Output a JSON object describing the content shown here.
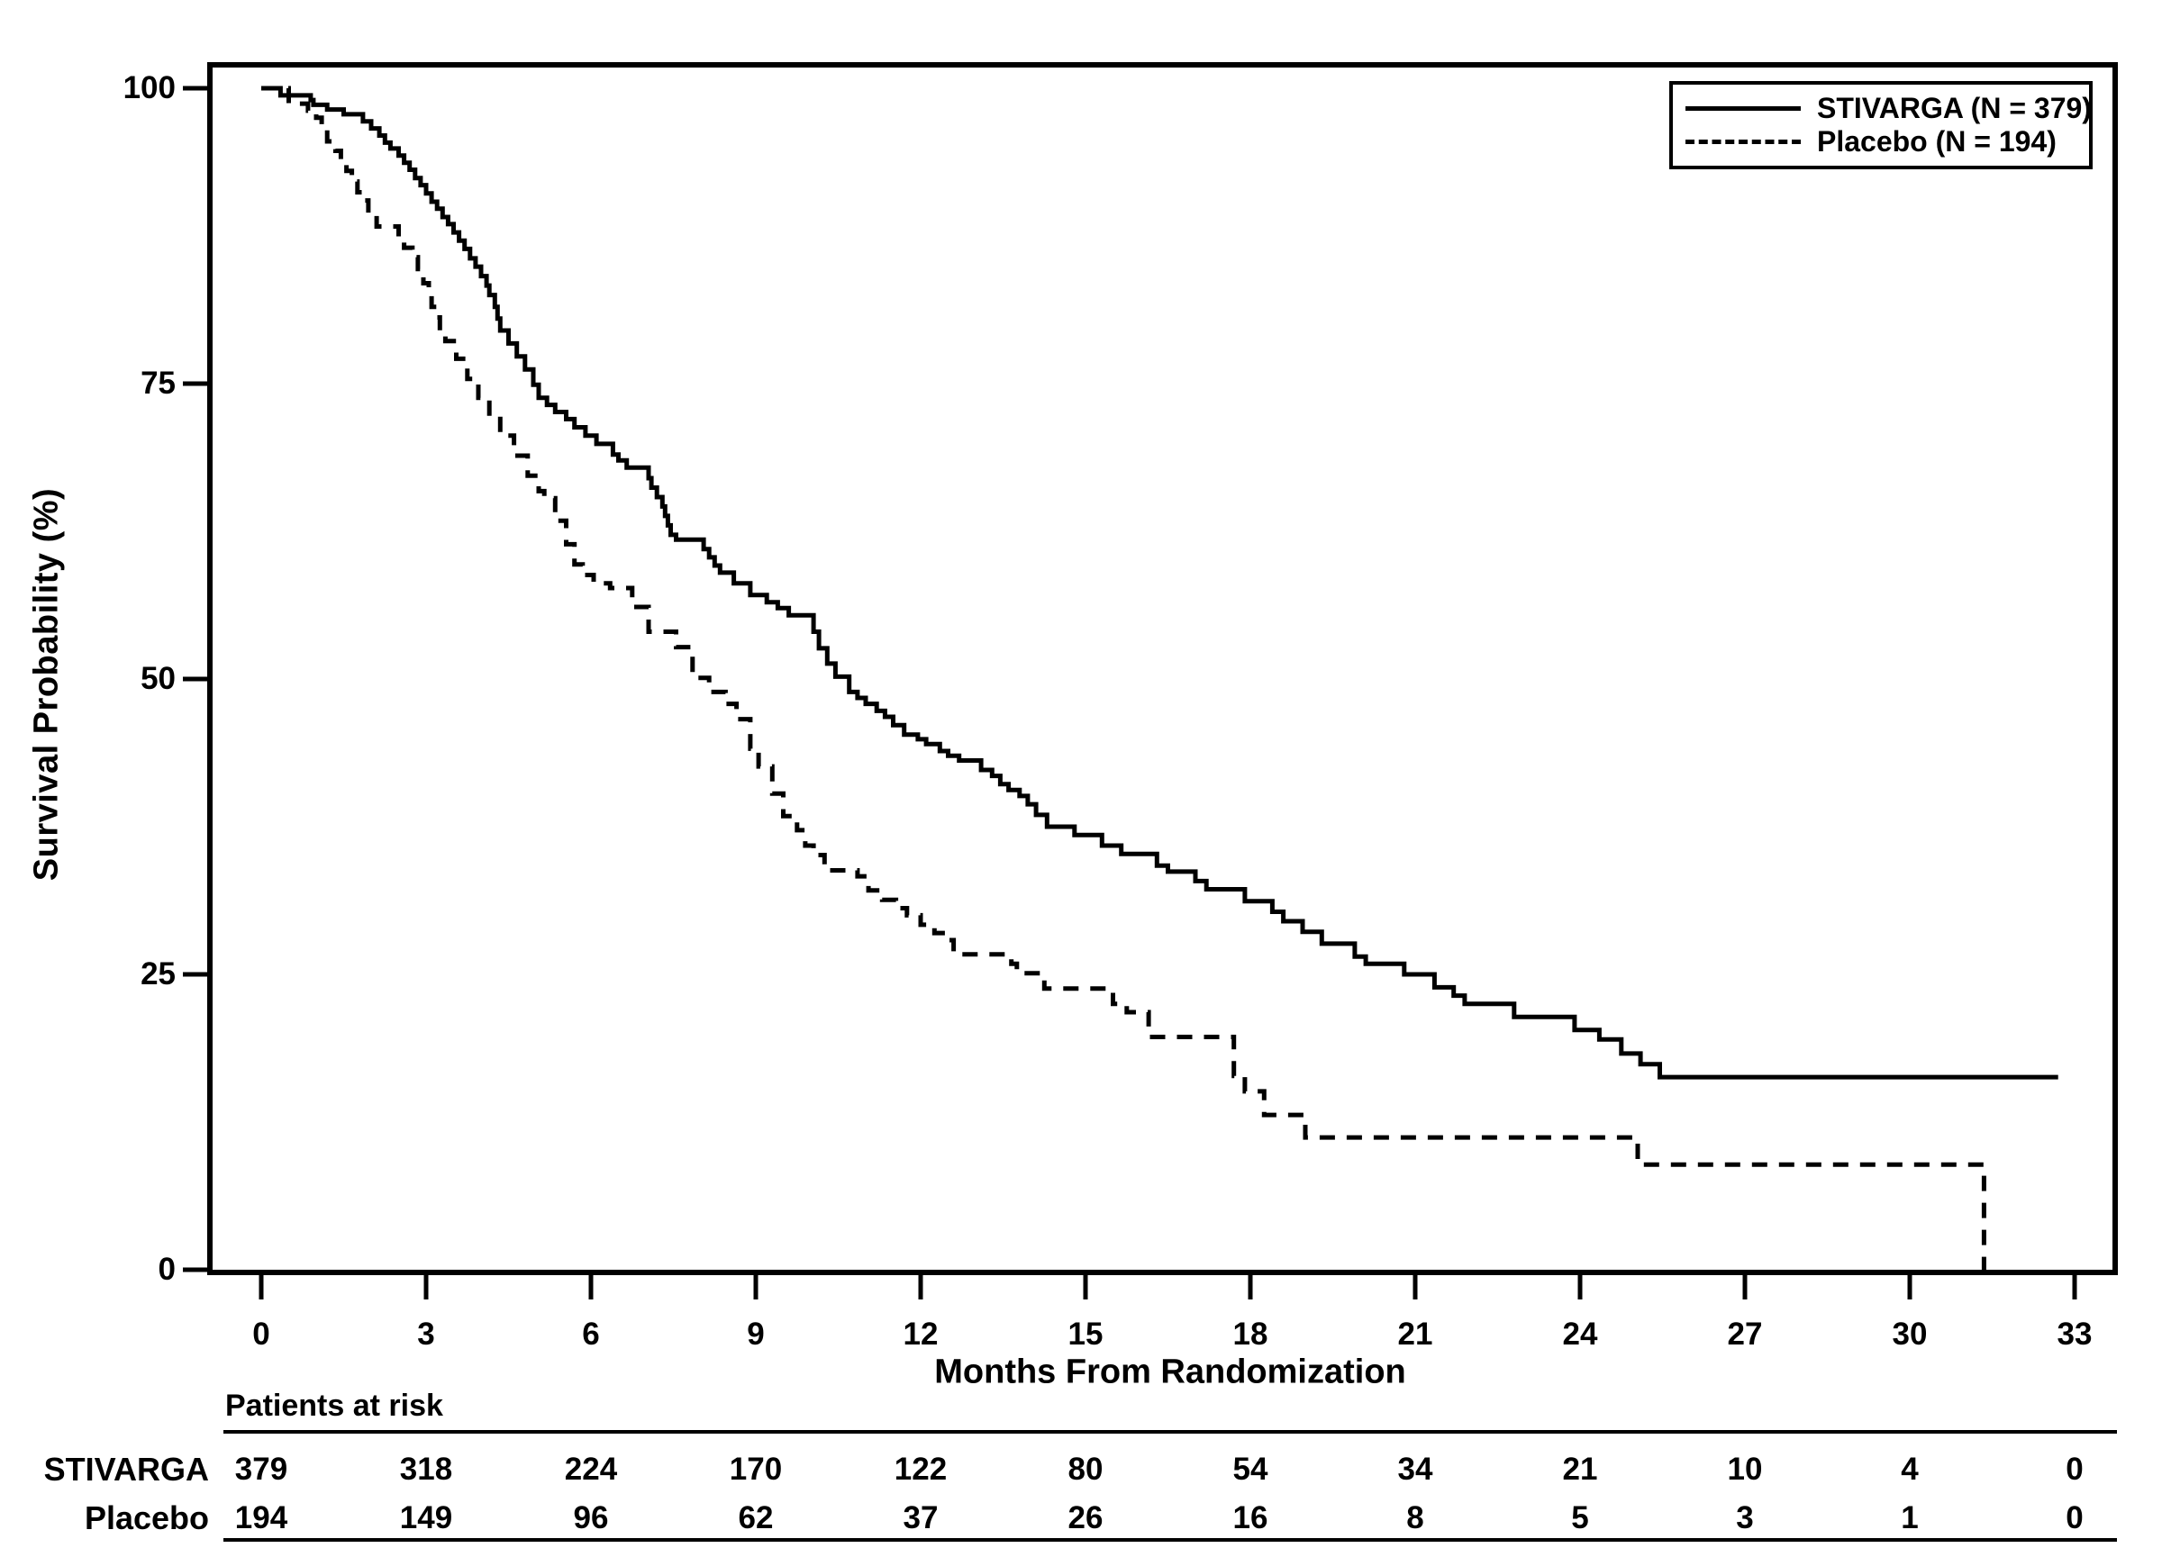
{
  "chart_data": {
    "type": "line",
    "subtype": "kaplan-meier-step",
    "xlabel": "Months From Randomization",
    "ylabel": "Survival Probability (%)",
    "xlim": [
      0,
      33
    ],
    "ylim": [
      0,
      100
    ],
    "xticks": [
      0,
      3,
      6,
      9,
      12,
      15,
      18,
      21,
      24,
      27,
      30,
      33
    ],
    "yticks": [
      0,
      25,
      50,
      75,
      100
    ],
    "grid": false,
    "line_color": "#000000",
    "background": "#ffffff",
    "legend": {
      "position": "top-right",
      "entries": [
        {
          "label": "STIVARGA (N = 379)",
          "style": "solid"
        },
        {
          "label": "Placebo (N = 194)",
          "style": "dashed"
        }
      ]
    },
    "series": [
      {
        "name": "STIVARGA",
        "n": 379,
        "style": "solid",
        "points": [
          [
            0,
            100
          ],
          [
            0.35,
            99.4
          ],
          [
            0.9,
            99.0
          ],
          [
            0.95,
            98.6
          ],
          [
            1.2,
            98.2
          ],
          [
            1.5,
            97.8
          ],
          [
            1.85,
            97.2
          ],
          [
            2.0,
            96.6
          ],
          [
            2.15,
            96.0
          ],
          [
            2.25,
            95.4
          ],
          [
            2.35,
            94.9
          ],
          [
            2.5,
            94.3
          ],
          [
            2.6,
            93.7
          ],
          [
            2.7,
            93.1
          ],
          [
            2.8,
            92.4
          ],
          [
            2.9,
            91.8
          ],
          [
            3.0,
            91.1
          ],
          [
            3.1,
            90.4
          ],
          [
            3.2,
            89.8
          ],
          [
            3.3,
            89.1
          ],
          [
            3.4,
            88.5
          ],
          [
            3.5,
            87.8
          ],
          [
            3.6,
            87.1
          ],
          [
            3.7,
            86.4
          ],
          [
            3.8,
            85.6
          ],
          [
            3.9,
            84.9
          ],
          [
            4.0,
            84.1
          ],
          [
            4.1,
            83.3
          ],
          [
            4.15,
            82.5
          ],
          [
            4.25,
            81.5
          ],
          [
            4.3,
            80.5
          ],
          [
            4.35,
            79.5
          ],
          [
            4.5,
            78.4
          ],
          [
            4.65,
            77.3
          ],
          [
            4.8,
            76.2
          ],
          [
            4.95,
            74.9
          ],
          [
            5.05,
            73.8
          ],
          [
            5.2,
            73.2
          ],
          [
            5.35,
            72.6
          ],
          [
            5.55,
            72.0
          ],
          [
            5.7,
            71.3
          ],
          [
            5.9,
            70.6
          ],
          [
            6.1,
            69.9
          ],
          [
            6.4,
            69.0
          ],
          [
            6.5,
            68.5
          ],
          [
            6.65,
            67.9
          ],
          [
            7.05,
            67.0
          ],
          [
            7.1,
            66.2
          ],
          [
            7.2,
            65.4
          ],
          [
            7.3,
            64.6
          ],
          [
            7.35,
            63.8
          ],
          [
            7.4,
            63.0
          ],
          [
            7.45,
            62.2
          ],
          [
            7.55,
            61.8
          ],
          [
            8.05,
            61.0
          ],
          [
            8.15,
            60.3
          ],
          [
            8.25,
            59.6
          ],
          [
            8.35,
            59.0
          ],
          [
            8.6,
            58.1
          ],
          [
            8.9,
            57.1
          ],
          [
            9.2,
            56.5
          ],
          [
            9.4,
            56.0
          ],
          [
            9.6,
            55.4
          ],
          [
            10.05,
            54.0
          ],
          [
            10.15,
            52.6
          ],
          [
            10.3,
            51.3
          ],
          [
            10.45,
            50.2
          ],
          [
            10.7,
            48.9
          ],
          [
            10.85,
            48.4
          ],
          [
            11.0,
            47.9
          ],
          [
            11.2,
            47.3
          ],
          [
            11.35,
            46.8
          ],
          [
            11.5,
            46.1
          ],
          [
            11.7,
            45.3
          ],
          [
            11.95,
            44.9
          ],
          [
            12.1,
            44.5
          ],
          [
            12.35,
            43.9
          ],
          [
            12.5,
            43.5
          ],
          [
            12.7,
            43.1
          ],
          [
            13.1,
            42.3
          ],
          [
            13.3,
            41.8
          ],
          [
            13.45,
            41.1
          ],
          [
            13.6,
            40.6
          ],
          [
            13.8,
            40.1
          ],
          [
            13.95,
            39.4
          ],
          [
            14.1,
            38.5
          ],
          [
            14.3,
            37.5
          ],
          [
            14.8,
            36.8
          ],
          [
            15.3,
            35.9
          ],
          [
            15.65,
            35.2
          ],
          [
            16.3,
            34.2
          ],
          [
            16.5,
            33.7
          ],
          [
            17.0,
            32.9
          ],
          [
            17.2,
            32.2
          ],
          [
            17.9,
            31.2
          ],
          [
            18.4,
            30.3
          ],
          [
            18.6,
            29.5
          ],
          [
            18.95,
            28.6
          ],
          [
            19.3,
            27.6
          ],
          [
            19.9,
            26.5
          ],
          [
            20.1,
            25.9
          ],
          [
            20.8,
            25.0
          ],
          [
            21.35,
            23.9
          ],
          [
            21.7,
            23.2
          ],
          [
            21.9,
            22.5
          ],
          [
            22.8,
            21.4
          ],
          [
            23.9,
            20.3
          ],
          [
            24.35,
            19.5
          ],
          [
            24.75,
            18.3
          ],
          [
            25.1,
            17.4
          ],
          [
            25.45,
            16.3
          ],
          [
            32.7,
            16.3
          ]
        ]
      },
      {
        "name": "Placebo",
        "n": 194,
        "style": "dashed",
        "points": [
          [
            0,
            100
          ],
          [
            0.5,
            98.7
          ],
          [
            0.85,
            98.1
          ],
          [
            1.0,
            97.5
          ],
          [
            1.1,
            96.5
          ],
          [
            1.2,
            95.5
          ],
          [
            1.35,
            94.7
          ],
          [
            1.45,
            93.9
          ],
          [
            1.55,
            93.0
          ],
          [
            1.65,
            92.1
          ],
          [
            1.75,
            91.2
          ],
          [
            1.85,
            90.5
          ],
          [
            1.95,
            89.3
          ],
          [
            2.1,
            88.3
          ],
          [
            2.5,
            87.4
          ],
          [
            2.6,
            86.5
          ],
          [
            2.75,
            85.7
          ],
          [
            2.85,
            84.7
          ],
          [
            2.95,
            83.5
          ],
          [
            3.05,
            82.4
          ],
          [
            3.1,
            81.5
          ],
          [
            3.2,
            80.6
          ],
          [
            3.25,
            79.4
          ],
          [
            3.35,
            78.6
          ],
          [
            3.55,
            77.1
          ],
          [
            3.75,
            75.4
          ],
          [
            3.95,
            73.8
          ],
          [
            4.15,
            72.2
          ],
          [
            4.35,
            70.6
          ],
          [
            4.6,
            68.9
          ],
          [
            4.85,
            67.2
          ],
          [
            5.05,
            65.9
          ],
          [
            5.15,
            65.3
          ],
          [
            5.35,
            63.4
          ],
          [
            5.55,
            61.4
          ],
          [
            5.7,
            59.7
          ],
          [
            5.85,
            58.8
          ],
          [
            6.05,
            58.1
          ],
          [
            6.35,
            57.7
          ],
          [
            6.75,
            56.1
          ],
          [
            7.05,
            54.0
          ],
          [
            7.55,
            52.7
          ],
          [
            7.85,
            50.1
          ],
          [
            8.15,
            48.9
          ],
          [
            8.45,
            47.9
          ],
          [
            8.65,
            46.6
          ],
          [
            8.9,
            44.1
          ],
          [
            9.05,
            42.6
          ],
          [
            9.3,
            40.3
          ],
          [
            9.5,
            38.4
          ],
          [
            9.75,
            37.2
          ],
          [
            9.9,
            35.9
          ],
          [
            10.05,
            35.1
          ],
          [
            10.25,
            33.8
          ],
          [
            10.85,
            33.3
          ],
          [
            11.05,
            32.1
          ],
          [
            11.3,
            31.3
          ],
          [
            11.55,
            30.6
          ],
          [
            11.75,
            30.0
          ],
          [
            12.0,
            29.2
          ],
          [
            12.25,
            28.5
          ],
          [
            12.45,
            27.9
          ],
          [
            12.6,
            26.7
          ],
          [
            13.65,
            25.9
          ],
          [
            13.75,
            25.1
          ],
          [
            14.25,
            23.8
          ],
          [
            15.5,
            22.5
          ],
          [
            15.75,
            21.8
          ],
          [
            16.15,
            19.7
          ],
          [
            17.7,
            16.4
          ],
          [
            17.9,
            15.1
          ],
          [
            18.25,
            13.1
          ],
          [
            19.0,
            11.2
          ],
          [
            25.05,
            8.9
          ],
          [
            31.35,
            8.9
          ],
          [
            31.35,
            0
          ]
        ]
      }
    ],
    "risk_table": {
      "header": "Patients at risk",
      "months": [
        0,
        3,
        6,
        9,
        12,
        15,
        18,
        21,
        24,
        27,
        30,
        33
      ],
      "rows": [
        {
          "label": "STIVARGA",
          "counts": [
            379,
            318,
            224,
            170,
            122,
            80,
            54,
            34,
            21,
            10,
            4,
            0
          ]
        },
        {
          "label": "Placebo",
          "counts": [
            194,
            149,
            96,
            62,
            37,
            26,
            16,
            8,
            5,
            3,
            1,
            0
          ]
        }
      ]
    }
  }
}
